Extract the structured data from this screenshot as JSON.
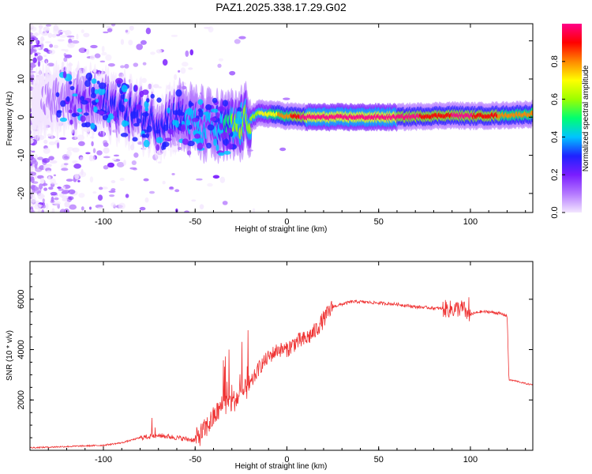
{
  "title": "PAZ1.2025.338.17.29.G02",
  "chart_data": [
    {
      "type": "heatmap",
      "xlabel": "Height of straight line (km)",
      "ylabel": "Frequency (Hz)",
      "xlim": [
        -140,
        134
      ],
      "ylim": [
        -25,
        24.5
      ],
      "xticks": [
        -100,
        -50,
        0,
        50,
        100
      ],
      "yticks": [
        -20,
        -10,
        0,
        10,
        20
      ],
      "colorbar": {
        "label": "Normalized spectral amplitude",
        "range": [
          0,
          1
        ],
        "ticks": [
          0.0,
          0.2,
          0.4,
          0.6,
          0.8
        ],
        "tick_labels": [
          "0.0",
          "0.2",
          "0.4",
          "0.6",
          "0.8"
        ],
        "colors": [
          "#f3e6ff",
          "#b478ff",
          "#7a1dff",
          "#1e22ff",
          "#00c4ff",
          "#00ff70",
          "#9cff00",
          "#ffff00",
          "#ff8800",
          "#ff0000",
          "#ff0088"
        ]
      },
      "ridge": [
        {
          "x": -120,
          "f": 4.5
        },
        {
          "x": -100,
          "f": 3.5
        },
        {
          "x": -90,
          "f": 2.5
        },
        {
          "x": -80,
          "f": 0.5
        },
        {
          "x": -70,
          "f": -1.5
        },
        {
          "x": -60,
          "f": 0.5
        },
        {
          "x": -55,
          "f": -0.5
        },
        {
          "x": -45,
          "f": -2
        },
        {
          "x": -35,
          "f": -3
        },
        {
          "x": -28,
          "f": -2.5
        },
        {
          "x": -22,
          "f": -1
        },
        {
          "x": -15,
          "f": 1
        },
        {
          "x": -8,
          "f": 0.8
        },
        {
          "x": 0,
          "f": 0.3
        },
        {
          "x": 10,
          "f": 0
        },
        {
          "x": 30,
          "f": 0
        },
        {
          "x": 60,
          "f": 0
        },
        {
          "x": 90,
          "f": 0.5
        },
        {
          "x": 100,
          "f": 0.3
        },
        {
          "x": 120,
          "f": 0.5
        },
        {
          "x": 134,
          "f": 0.8
        }
      ],
      "ridge_strength": [
        {
          "x": -140,
          "a": 0.0
        },
        {
          "x": -125,
          "a": 0.12
        },
        {
          "x": -105,
          "a": 0.2
        },
        {
          "x": -95,
          "a": 0.3
        },
        {
          "x": -70,
          "a": 0.3
        },
        {
          "x": -55,
          "a": 0.35
        },
        {
          "x": -40,
          "a": 0.35
        },
        {
          "x": -30,
          "a": 0.55
        },
        {
          "x": -20,
          "a": 0.6
        },
        {
          "x": 0,
          "a": 0.8
        },
        {
          "x": 10,
          "a": 1.0
        },
        {
          "x": 60,
          "a": 1.0
        },
        {
          "x": 85,
          "a": 0.9
        },
        {
          "x": 95,
          "a": 1.0
        },
        {
          "x": 115,
          "a": 0.85
        },
        {
          "x": 134,
          "a": 0.8
        }
      ]
    },
    {
      "type": "line",
      "xlabel": "Height of straight line (km)",
      "ylabel": "SNR (10 * v/v)",
      "xlim": [
        -140,
        134
      ],
      "ylim": [
        0,
        7500
      ],
      "xticks": [
        -100,
        -50,
        0,
        50,
        100
      ],
      "yticks": [
        2000,
        4000,
        6000
      ],
      "color": "#ef3333",
      "series": [
        {
          "name": "SNR",
          "x": [
            -140,
            -120,
            -100,
            -90,
            -80,
            -70,
            -60,
            -50,
            -45,
            -40,
            -35,
            -30,
            -25,
            -20,
            -15,
            -10,
            -5,
            0,
            5,
            10,
            15,
            20,
            25,
            30,
            35,
            40,
            50,
            60,
            70,
            80,
            90,
            95,
            100,
            105,
            110,
            115,
            120,
            121,
            125,
            130,
            134
          ],
          "y": [
            100,
            150,
            200,
            300,
            500,
            600,
            500,
            400,
            800,
            1300,
            1800,
            1900,
            2200,
            2600,
            3300,
            3700,
            4000,
            4000,
            4300,
            4400,
            4700,
            5200,
            5700,
            5800,
            5900,
            5900,
            5850,
            5800,
            5700,
            5650,
            5600,
            5650,
            5400,
            5500,
            5500,
            5450,
            5350,
            2800,
            2750,
            2650,
            2600
          ]
        }
      ],
      "annotations": [
        {
          "x": -72,
          "y": 2000,
          "label": ""
        },
        {
          "x": 100,
          "y": 7300,
          "label": ""
        }
      ]
    }
  ]
}
